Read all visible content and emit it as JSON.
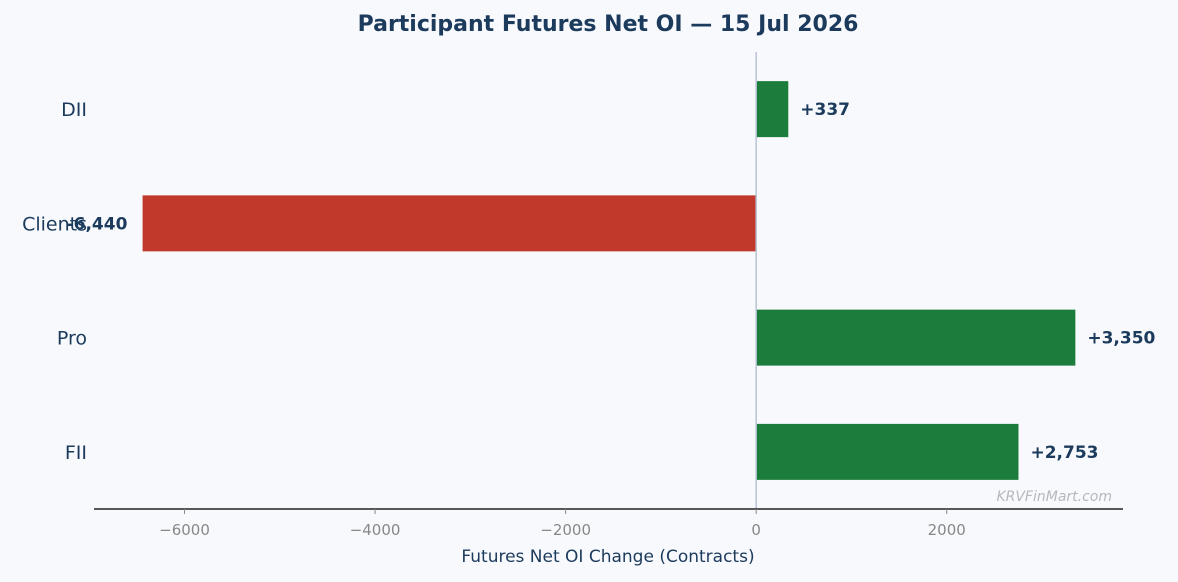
{
  "chart_data": {
    "type": "bar",
    "orientation": "horizontal",
    "title": "Participant Futures Net OI — 15 Jul 2026",
    "xlabel": "Futures Net OI Change (Contracts)",
    "ylabel": "",
    "categories": [
      "DII",
      "Clients",
      "Pro",
      "FII"
    ],
    "values": [
      337,
      -6440,
      3350,
      2753
    ],
    "value_labels": [
      "+337",
      "-6,440",
      "+3,350",
      "+2,753"
    ],
    "xlim": [
      -6950,
      3850
    ],
    "xticks": [
      -6000,
      -4000,
      -2000,
      0,
      2000
    ],
    "xtick_labels": [
      "−6000",
      "−4000",
      "−2000",
      "0",
      "2000"
    ],
    "grid": false,
    "legend": "none",
    "colors": {
      "positive": "#1c7c3c",
      "negative": "#c0392b",
      "zero_line": "#b8c4d4",
      "axis": "#222222",
      "text": "#1b3a5c"
    }
  },
  "watermark": "KRVFinMart.com"
}
